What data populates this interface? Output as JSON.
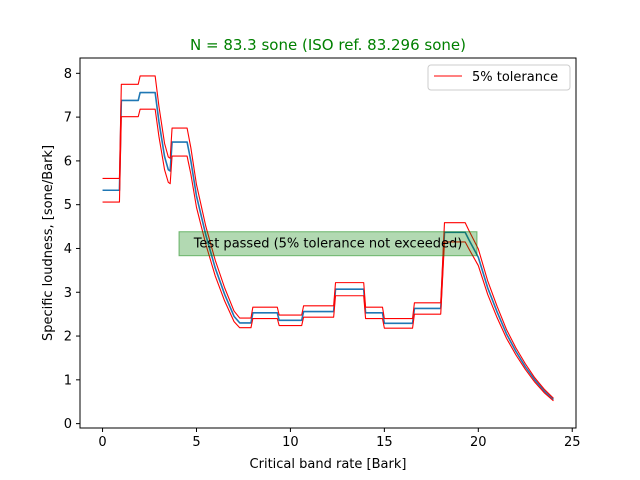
{
  "chart_data": {
    "type": "line",
    "title": "N = 83.3 sone (ISO ref. 83.296 sone)",
    "title_color": "#008000",
    "xlabel": "Critical band rate [Bark]",
    "ylabel": "Specific loudness, [sone/Bark]",
    "xlim": [
      -1.2,
      25.2
    ],
    "ylim": [
      -0.1,
      8.35
    ],
    "xticks": [
      0,
      5,
      10,
      15,
      20,
      25
    ],
    "yticks": [
      0,
      1,
      2,
      3,
      4,
      5,
      6,
      7,
      8
    ],
    "grid": false,
    "legend": {
      "placement": "top-right",
      "entries": [
        {
          "label": "5% tolerance",
          "color": "#ff0000"
        }
      ]
    },
    "annotation": {
      "text": "Test passed (5% tolerance not exceeded)",
      "box_color": "#008000",
      "x": 12.0,
      "y": 4.12
    },
    "series": [
      {
        "role": "computed",
        "color": "#1f77b4",
        "x": [
          0.0,
          0.9,
          1.0,
          1.9,
          2.0,
          2.8,
          3.0,
          3.3,
          3.5,
          3.6,
          3.7,
          4.5,
          4.7,
          5.0,
          5.5,
          6.0,
          6.5,
          7.0,
          7.3,
          7.4,
          7.9,
          8.0,
          9.3,
          9.4,
          10.6,
          10.7,
          12.3,
          12.4,
          13.9,
          14.0,
          14.9,
          15.0,
          16.5,
          16.6,
          18.0,
          18.2,
          19.3,
          19.5,
          20.0,
          20.5,
          21.0,
          21.5,
          22.0,
          22.5,
          23.0,
          23.5,
          24.0
        ],
        "y": [
          5.33,
          5.33,
          7.38,
          7.38,
          7.56,
          7.56,
          6.9,
          6.1,
          5.8,
          5.77,
          6.43,
          6.43,
          6.0,
          5.2,
          4.3,
          3.55,
          2.95,
          2.45,
          2.3,
          2.3,
          2.3,
          2.53,
          2.53,
          2.36,
          2.36,
          2.56,
          2.56,
          3.07,
          3.07,
          2.53,
          2.53,
          2.29,
          2.29,
          2.63,
          2.63,
          4.37,
          4.37,
          4.2,
          3.8,
          3.1,
          2.55,
          2.05,
          1.65,
          1.3,
          1.0,
          0.75,
          0.55
        ]
      },
      {
        "role": "upper_tolerance",
        "color": "#ff0000",
        "x": [
          0.0,
          0.9,
          1.0,
          1.9,
          2.0,
          2.8,
          3.0,
          3.3,
          3.5,
          3.6,
          3.7,
          4.5,
          4.7,
          5.0,
          5.5,
          6.0,
          6.5,
          7.0,
          7.3,
          7.4,
          7.9,
          8.0,
          9.3,
          9.4,
          10.6,
          10.7,
          12.3,
          12.4,
          13.9,
          14.0,
          14.9,
          15.0,
          16.5,
          16.6,
          18.0,
          18.2,
          19.3,
          19.5,
          20.0,
          20.5,
          21.0,
          21.5,
          22.0,
          22.5,
          23.0,
          23.5,
          24.0
        ],
        "y": [
          5.6,
          5.6,
          7.75,
          7.75,
          7.94,
          7.94,
          7.25,
          6.4,
          6.09,
          6.06,
          6.75,
          6.75,
          6.3,
          5.46,
          4.5,
          3.73,
          3.1,
          2.57,
          2.41,
          2.41,
          2.41,
          2.66,
          2.66,
          2.48,
          2.48,
          2.69,
          2.69,
          3.22,
          3.22,
          2.66,
          2.66,
          2.4,
          2.4,
          2.76,
          2.76,
          4.59,
          4.59,
          4.41,
          3.99,
          3.26,
          2.68,
          2.15,
          1.73,
          1.37,
          1.05,
          0.79,
          0.58
        ]
      },
      {
        "role": "lower_tolerance",
        "color": "#ff0000",
        "x": [
          0.0,
          0.9,
          1.0,
          1.9,
          2.0,
          2.8,
          3.0,
          3.3,
          3.5,
          3.6,
          3.7,
          4.5,
          4.7,
          5.0,
          5.5,
          6.0,
          6.5,
          7.0,
          7.3,
          7.4,
          7.9,
          8.0,
          9.3,
          9.4,
          10.6,
          10.7,
          12.3,
          12.4,
          13.9,
          14.0,
          14.9,
          15.0,
          16.5,
          16.6,
          18.0,
          18.2,
          19.3,
          19.5,
          20.0,
          20.5,
          21.0,
          21.5,
          22.0,
          22.5,
          23.0,
          23.5,
          24.0
        ],
        "y": [
          5.06,
          5.06,
          7.01,
          7.01,
          7.18,
          7.18,
          6.56,
          5.8,
          5.51,
          5.48,
          6.11,
          6.11,
          5.7,
          4.94,
          4.09,
          3.37,
          2.8,
          2.33,
          2.19,
          2.19,
          2.19,
          2.4,
          2.4,
          2.24,
          2.24,
          2.43,
          2.43,
          2.92,
          2.92,
          2.4,
          2.4,
          2.18,
          2.18,
          2.5,
          2.5,
          4.15,
          4.15,
          3.99,
          3.61,
          2.95,
          2.42,
          1.95,
          1.57,
          1.24,
          0.95,
          0.71,
          0.52
        ]
      }
    ]
  }
}
